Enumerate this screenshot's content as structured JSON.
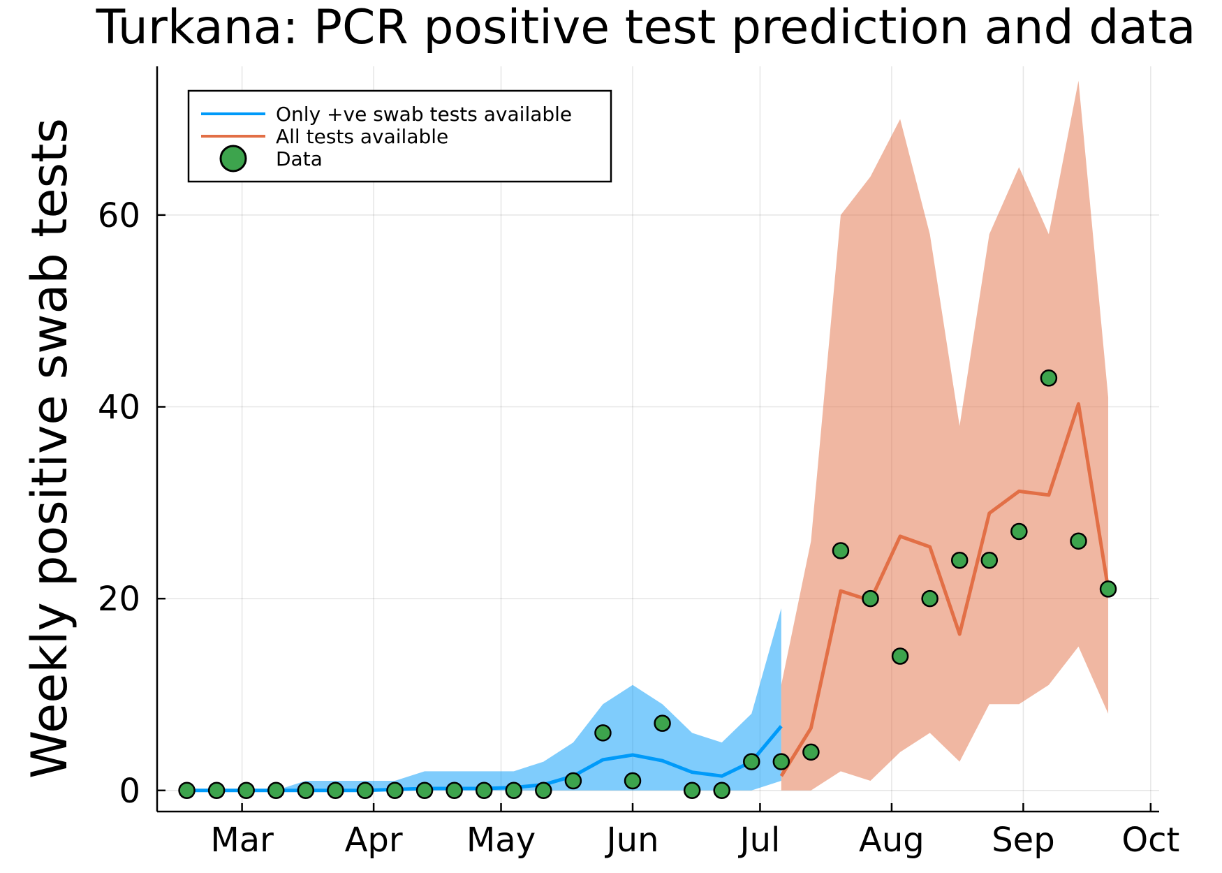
{
  "chart_data": {
    "type": "line",
    "title": "Turkana: PCR positive test prediction and data",
    "xlabel": "",
    "ylabel": "Weekly positive swab tests",
    "x_unit": "date",
    "year": 2020,
    "xlim": [
      "2020-02-10",
      "2020-10-03"
    ],
    "ylim": [
      -2.2,
      75.5
    ],
    "yticks": [
      0,
      20,
      40,
      60
    ],
    "xticks": [
      {
        "label": "Mar",
        "date": "2020-03-01"
      },
      {
        "label": "Apr",
        "date": "2020-04-01"
      },
      {
        "label": "May",
        "date": "2020-05-01"
      },
      {
        "label": "Jun",
        "date": "2020-06-01"
      },
      {
        "label": "Jul",
        "date": "2020-07-01"
      },
      {
        "label": "Aug",
        "date": "2020-08-01"
      },
      {
        "label": "Sep",
        "date": "2020-09-01"
      },
      {
        "label": "Oct",
        "date": "2020-10-01"
      }
    ],
    "grid": true,
    "legend_position": "top-left",
    "series": [
      {
        "name": "Only +ve swab tests available",
        "kind": "line",
        "color": "#009af9",
        "band_color": "#009af9",
        "x": [
          "2020-02-17",
          "2020-02-24",
          "2020-03-02",
          "2020-03-09",
          "2020-03-16",
          "2020-03-23",
          "2020-03-30",
          "2020-04-06",
          "2020-04-13",
          "2020-04-20",
          "2020-04-27",
          "2020-05-04",
          "2020-05-11",
          "2020-05-18",
          "2020-05-25",
          "2020-06-01",
          "2020-06-08",
          "2020-06-15",
          "2020-06-22",
          "2020-06-29",
          "2020-07-06"
        ],
        "y": [
          0,
          0,
          0,
          0,
          0,
          0,
          0,
          0.1,
          0.2,
          0.2,
          0.2,
          0.3,
          0.6,
          1.5,
          3.2,
          3.7,
          3.1,
          1.9,
          1.5,
          3.0,
          6.7
        ],
        "lower": [
          0,
          0,
          0,
          0,
          0,
          0,
          0,
          0,
          0,
          0,
          0,
          0,
          0,
          0,
          0,
          0,
          0,
          0,
          0,
          0,
          1
        ],
        "upper": [
          0,
          0,
          0,
          0,
          1,
          1,
          1,
          1,
          2,
          2,
          2,
          2,
          3,
          5,
          9,
          11,
          9,
          6,
          5,
          8,
          19
        ]
      },
      {
        "name": "All tests available",
        "kind": "line",
        "color": "#e26f46",
        "band_color": "#e26f46",
        "x": [
          "2020-07-06",
          "2020-07-13",
          "2020-07-20",
          "2020-07-27",
          "2020-08-03",
          "2020-08-10",
          "2020-08-17",
          "2020-08-24",
          "2020-08-31",
          "2020-09-07",
          "2020-09-14",
          "2020-09-21"
        ],
        "y": [
          1.5,
          6.5,
          20.8,
          19.8,
          26.5,
          25.4,
          16.3,
          28.9,
          31.2,
          30.8,
          40.3,
          21.0
        ],
        "lower": [
          0,
          0,
          2,
          1,
          4,
          6,
          3,
          9,
          9,
          11,
          15,
          8
        ],
        "upper": [
          11,
          26,
          60,
          64,
          70,
          58,
          38,
          58,
          65,
          58,
          74,
          41
        ]
      },
      {
        "name": "Data",
        "kind": "scatter",
        "color": "#3da44d",
        "x": [
          "2020-02-17",
          "2020-02-24",
          "2020-03-02",
          "2020-03-09",
          "2020-03-16",
          "2020-03-23",
          "2020-03-30",
          "2020-04-06",
          "2020-04-13",
          "2020-04-20",
          "2020-04-27",
          "2020-05-04",
          "2020-05-11",
          "2020-05-18",
          "2020-05-25",
          "2020-06-01",
          "2020-06-08",
          "2020-06-15",
          "2020-06-22",
          "2020-06-29",
          "2020-07-06",
          "2020-07-13",
          "2020-07-20",
          "2020-07-27",
          "2020-08-03",
          "2020-08-10",
          "2020-08-17",
          "2020-08-24",
          "2020-08-31",
          "2020-09-07",
          "2020-09-14",
          "2020-09-21"
        ],
        "y": [
          0,
          0,
          0,
          0,
          0,
          0,
          0,
          0,
          0,
          0,
          0,
          0,
          0,
          1,
          6,
          1,
          7,
          0,
          0,
          3,
          3,
          4,
          25,
          20,
          14,
          20,
          24,
          24,
          27,
          43,
          26,
          21
        ]
      }
    ]
  }
}
